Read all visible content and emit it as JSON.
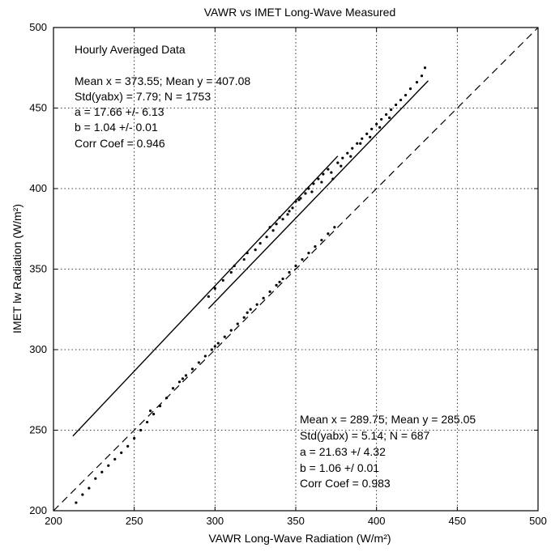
{
  "chart_data": {
    "type": "scatter",
    "title": "VAWR vs IMET Long-Wave Measured",
    "xlabel": "VAWR  Long-Wave Radiation (W/m²)",
    "ylabel": "IMET  lw Radiation (W/m²)",
    "xlim": [
      200,
      500
    ],
    "ylim": [
      200,
      500
    ],
    "xticks": [
      "200",
      "250",
      "300",
      "350",
      "400",
      "450",
      "500"
    ],
    "yticks": [
      "200",
      "250",
      "300",
      "350",
      "400",
      "450",
      "500"
    ],
    "grid": true,
    "marker_color": "#000000",
    "series": [
      {
        "points": [
          [
            296,
            333
          ],
          [
            300,
            338
          ],
          [
            305,
            343
          ],
          [
            310,
            348
          ],
          [
            312,
            352
          ],
          [
            318,
            356
          ],
          [
            320,
            360
          ],
          [
            325,
            362
          ],
          [
            328,
            366
          ],
          [
            332,
            370
          ],
          [
            336,
            374
          ],
          [
            338,
            378
          ],
          [
            342,
            381
          ],
          [
            345,
            384
          ],
          [
            348,
            388
          ],
          [
            350,
            392
          ],
          [
            353,
            394
          ],
          [
            356,
            397
          ],
          [
            358,
            400
          ],
          [
            361,
            403
          ],
          [
            364,
            406
          ],
          [
            367,
            409
          ],
          [
            370,
            412
          ],
          [
            373,
            406
          ],
          [
            376,
            416
          ],
          [
            379,
            419
          ],
          [
            382,
            422
          ],
          [
            385,
            425
          ],
          [
            388,
            428
          ],
          [
            391,
            431
          ],
          [
            394,
            434
          ],
          [
            397,
            437
          ],
          [
            400,
            440
          ],
          [
            403,
            443
          ],
          [
            406,
            446
          ],
          [
            409,
            449
          ],
          [
            412,
            452
          ],
          [
            415,
            455
          ],
          [
            418,
            458
          ],
          [
            421,
            462
          ],
          [
            425,
            466
          ],
          [
            428,
            470
          ],
          [
            430,
            475
          ],
          [
            334,
            376
          ],
          [
            346,
            386
          ],
          [
            360,
            398
          ],
          [
            372,
            410
          ],
          [
            384,
            420
          ],
          [
            396,
            432
          ],
          [
            408,
            444
          ],
          [
            340,
            382
          ],
          [
            352,
            393
          ],
          [
            366,
            404
          ],
          [
            378,
            414
          ],
          [
            390,
            428
          ],
          [
            402,
            438
          ]
        ],
        "fit": {
          "a": 17.66,
          "b": 1.04,
          "x_range": [
            296,
            432
          ]
        }
      },
      {
        "points": [
          [
            214,
            205
          ],
          [
            218,
            210
          ],
          [
            222,
            214
          ],
          [
            226,
            220
          ],
          [
            230,
            224
          ],
          [
            234,
            228
          ],
          [
            238,
            232
          ],
          [
            242,
            236
          ],
          [
            246,
            240
          ],
          [
            250,
            245
          ],
          [
            254,
            250
          ],
          [
            258,
            255
          ],
          [
            262,
            260
          ],
          [
            266,
            265
          ],
          [
            270,
            270
          ],
          [
            274,
            276
          ],
          [
            278,
            280
          ],
          [
            282,
            284
          ],
          [
            286,
            288
          ],
          [
            290,
            292
          ],
          [
            294,
            296
          ],
          [
            298,
            300
          ],
          [
            302,
            304
          ],
          [
            306,
            308
          ],
          [
            310,
            312
          ],
          [
            314,
            316
          ],
          [
            318,
            320
          ],
          [
            322,
            325
          ],
          [
            326,
            328
          ],
          [
            330,
            332
          ],
          [
            334,
            336
          ],
          [
            338,
            340
          ],
          [
            342,
            344
          ],
          [
            346,
            348
          ],
          [
            350,
            352
          ],
          [
            354,
            356
          ],
          [
            358,
            360
          ],
          [
            362,
            364
          ],
          [
            366,
            368
          ],
          [
            370,
            372
          ],
          [
            374,
            376
          ],
          [
            260,
            262
          ],
          [
            280,
            282
          ],
          [
            300,
            302
          ],
          [
            320,
            323
          ],
          [
            340,
            342
          ]
        ],
        "fit": {
          "a": 21.63,
          "b": 1.06,
          "x_range": [
            212,
            376
          ]
        }
      }
    ],
    "one_to_one_line": true
  },
  "annotations": {
    "heading": "Hourly Averaged Data",
    "upper": [
      "Mean x = 373.55; Mean y = 407.08",
      "Std(yabx) = 7.79;   N = 1753",
      "a = 17.66  +/- 6.13",
      "b = 1.04  +/- 0.01",
      "Corr Coef = 0.946"
    ],
    "lower": [
      "Mean x = 289.75; Mean y = 285.05",
      "Std(yabx) = 5.14;   N = 687",
      "a = 21.63  +/  4.32",
      "b = 1.06  +/  0.01",
      "Corr Coef = 0.983"
    ]
  }
}
